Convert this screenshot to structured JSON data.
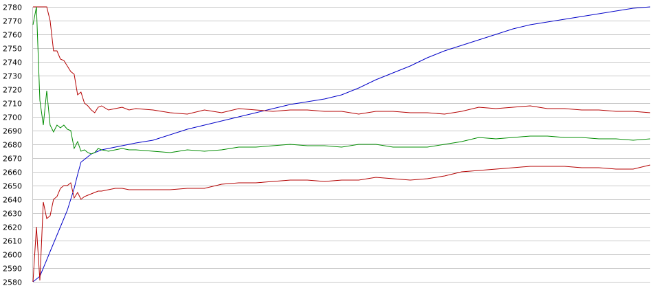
{
  "chart_data": {
    "type": "line",
    "title": "",
    "xlabel": "",
    "ylabel": "",
    "ylim": [
      2580,
      2780
    ],
    "yticks": [
      2780,
      2770,
      2760,
      2750,
      2740,
      2730,
      2720,
      2710,
      2700,
      2690,
      2680,
      2670,
      2660,
      2650,
      2640,
      2630,
      2620,
      2610,
      2600,
      2590,
      2580
    ],
    "grid": "horizontal",
    "x": [
      0,
      1,
      2,
      3,
      4,
      5,
      6,
      7,
      8,
      9,
      10,
      11,
      12,
      13,
      14,
      15,
      16,
      17,
      18,
      19,
      20,
      22,
      24,
      26,
      28,
      30,
      35,
      40,
      45,
      50,
      55,
      60,
      65,
      70,
      75,
      80,
      85,
      90,
      95,
      100,
      105,
      110,
      115,
      120,
      125,
      130,
      135,
      140,
      145,
      150,
      155,
      160,
      165,
      170,
      175,
      180
    ],
    "series": [
      {
        "color": "#0000c8",
        "values": [
          2580,
          2582,
          2584,
          2590,
          2596,
          2602,
          2608,
          2614,
          2620,
          2626,
          2632,
          2640,
          2648,
          2658,
          2667,
          2669,
          2671,
          2673,
          2674,
          2675,
          2676,
          2677,
          2678,
          2679,
          2680,
          2681,
          2683,
          2687,
          2691,
          2694,
          2697,
          2700,
          2703,
          2706,
          2709,
          2711,
          2713,
          2716,
          2721,
          2727,
          2732,
          2737,
          2743,
          2748,
          2752,
          2756,
          2760,
          2764,
          2767,
          2769,
          2771,
          2773,
          2775,
          2777,
          2779,
          2780
        ]
      },
      {
        "color": "#b40000",
        "values": [
          2780,
          2780,
          2780,
          2780,
          2780,
          2770,
          2748,
          2748,
          2742,
          2741,
          2737,
          2733,
          2731,
          2716,
          2718,
          2710,
          2708,
          2705,
          2703,
          2707,
          2708,
          2705,
          2706,
          2707,
          2705,
          2706,
          2705,
          2703,
          2702,
          2705,
          2703,
          2706,
          2705,
          2704,
          2705,
          2705,
          2704,
          2704,
          2702,
          2704,
          2704,
          2703,
          2703,
          2702,
          2704,
          2707,
          2706,
          2707,
          2708,
          2706,
          2706,
          2705,
          2705,
          2704,
          2704,
          2703
        ]
      },
      {
        "color": "#008c00",
        "values": [
          2767,
          2780,
          2712,
          2694,
          2719,
          2694,
          2689,
          2694,
          2692,
          2694,
          2691,
          2690,
          2677,
          2682,
          2675,
          2676,
          2674,
          2673,
          2674,
          2677,
          2676,
          2675,
          2676,
          2677,
          2676,
          2676,
          2675,
          2674,
          2676,
          2675,
          2676,
          2678,
          2678,
          2679,
          2680,
          2679,
          2679,
          2678,
          2680,
          2680,
          2678,
          2678,
          2678,
          2680,
          2682,
          2685,
          2684,
          2685,
          2686,
          2686,
          2685,
          2685,
          2684,
          2684,
          2683,
          2684
        ]
      },
      {
        "color": "#b40000",
        "values": [
          2580,
          2620,
          2581,
          2638,
          2626,
          2628,
          2640,
          2642,
          2648,
          2650,
          2650,
          2652,
          2641,
          2645,
          2640,
          2642,
          2643,
          2644,
          2645,
          2646,
          2646,
          2647,
          2648,
          2648,
          2647,
          2647,
          2647,
          2647,
          2648,
          2648,
          2651,
          2652,
          2652,
          2653,
          2654,
          2654,
          2653,
          2654,
          2654,
          2656,
          2655,
          2654,
          2655,
          2657,
          2660,
          2661,
          2662,
          2663,
          2664,
          2664,
          2664,
          2663,
          2663,
          2662,
          2662,
          2665
        ]
      }
    ]
  }
}
